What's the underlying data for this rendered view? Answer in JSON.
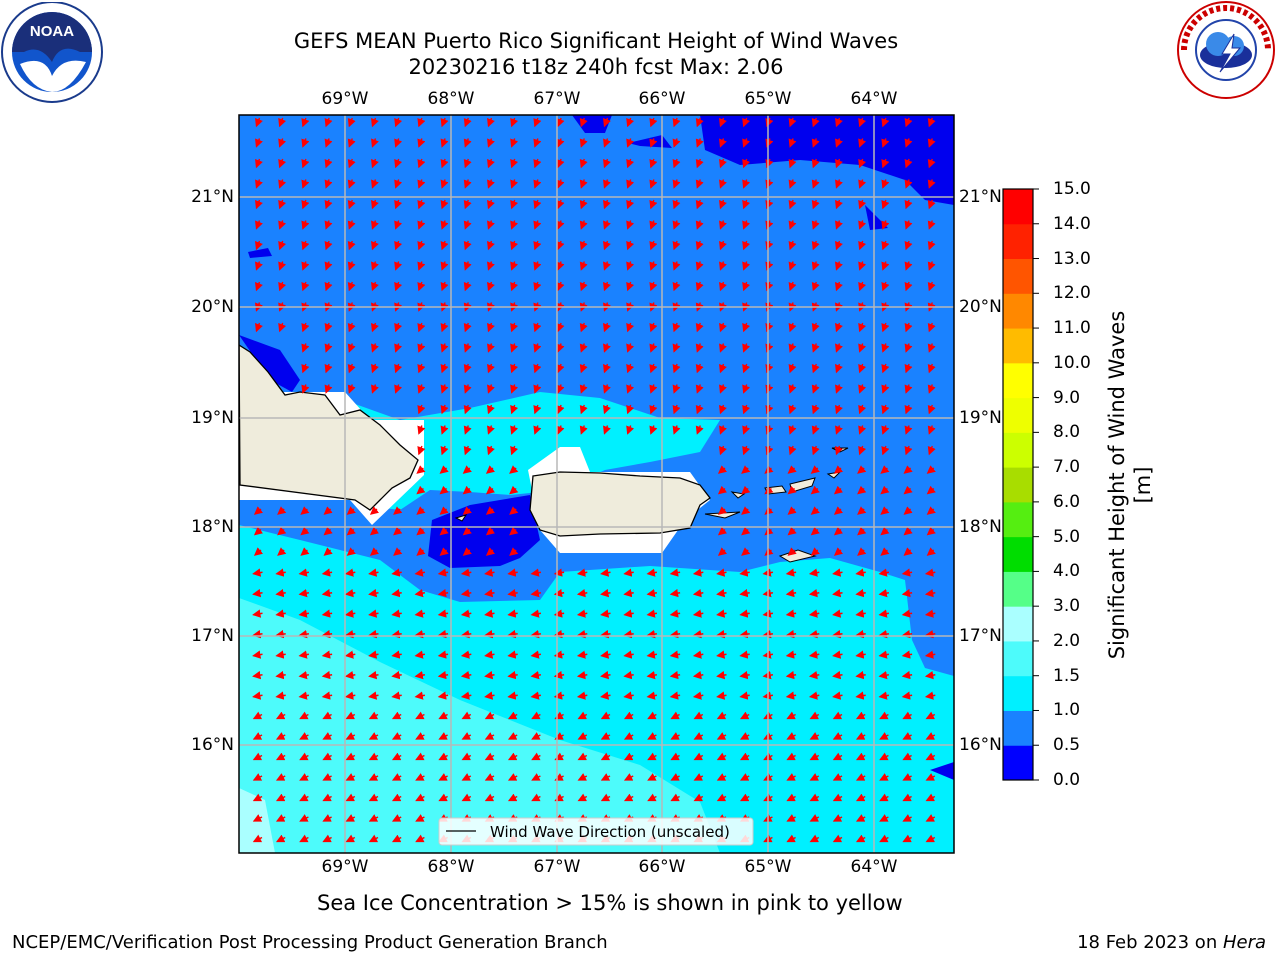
{
  "title_line1": "GEFS MEAN Puerto Rico Significant Height of Wind Waves",
  "title_line2": "20230216 t18z 240h fcst   Max: 2.06",
  "lon_labels": [
    "69°W",
    "68°W",
    "67°W",
    "66°W",
    "65°W",
    "64°W"
  ],
  "lat_labels": [
    "21°N",
    "20°N",
    "19°N",
    "18°N",
    "17°N",
    "16°N"
  ],
  "legend_label": "Wind Wave Direction (unscaled)",
  "colorbar": {
    "title": "Significant Height of Wind Waves [m]",
    "levels": [
      "0.0",
      "0.5",
      "1.0",
      "1.5",
      "2.0",
      "3.0",
      "4.0",
      "5.0",
      "6.0",
      "7.0",
      "8.0",
      "9.0",
      "10.0",
      "11.0",
      "12.0",
      "13.0",
      "14.0",
      "15.0"
    ],
    "colors": [
      "#0000ff",
      "#1a82ff",
      "#00f0ff",
      "#4dfbfb",
      "#aaffff",
      "#55ff88",
      "#00dd00",
      "#55ee11",
      "#a8dd00",
      "#ccff00",
      "#eeff00",
      "#ffff00",
      "#ffbb00",
      "#ff8800",
      "#ff5500",
      "#ff2200",
      "#ff0000"
    ]
  },
  "note": "Sea Ice Concentration > 15% is shown in pink to yellow",
  "footer_left": "NCEP/EMC/Verification Post Processing Product Generation Branch",
  "footer_date": "18 Feb 2023 on ",
  "footer_host": "Hera",
  "logo_left_text": "NOAA",
  "colors": {
    "land": "#efecdc",
    "arrow": "#ff0000",
    "deep": "#0000ee",
    "mid": "#1a82ff",
    "cyan": "#00f0ff",
    "light": "#4dfbfb",
    "pale": "#aaffff"
  }
}
